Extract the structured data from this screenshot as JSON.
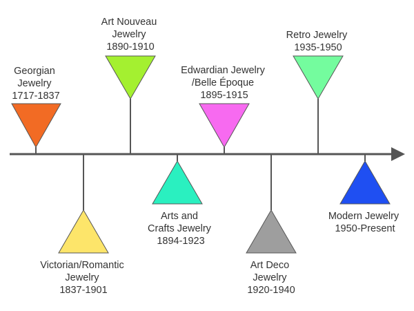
{
  "timeline": {
    "axis_color": "#555555",
    "periods": [
      {
        "id": "georgian",
        "position": "above",
        "label_lines": [
          "Georgian",
          "Jewelry",
          "1717-1837"
        ],
        "color": "#F26B24"
      },
      {
        "id": "victorian",
        "position": "below",
        "label_lines": [
          "Victorian/Romantic",
          "Jewelry",
          "1837-1901"
        ],
        "color": "#FDE56A"
      },
      {
        "id": "art-nouveau",
        "position": "above",
        "label_lines": [
          "Art Nouveau",
          "Jewelry",
          "1890-1910"
        ],
        "color": "#A4F030"
      },
      {
        "id": "arts-and-crafts",
        "position": "below",
        "label_lines": [
          "Arts and",
          "Crafts Jewelry",
          "1894-1923"
        ],
        "color": "#2AF0C0"
      },
      {
        "id": "edwardian",
        "position": "above",
        "label_lines": [
          "Edwardian Jewelry",
          "/Belle Époque",
          "1895-1915"
        ],
        "color": "#F76AF0"
      },
      {
        "id": "art-deco",
        "position": "below",
        "label_lines": [
          "Art Deco",
          "Jewelry",
          "1920-1940"
        ],
        "color": "#9E9E9E"
      },
      {
        "id": "retro",
        "position": "above",
        "label_lines": [
          "Retro Jewelry",
          "1935-1950"
        ],
        "color": "#74FC9E"
      },
      {
        "id": "modern",
        "position": "below",
        "label_lines": [
          "Modern Jewelry",
          "1950-Present"
        ],
        "color": "#1F4FF2"
      }
    ]
  }
}
